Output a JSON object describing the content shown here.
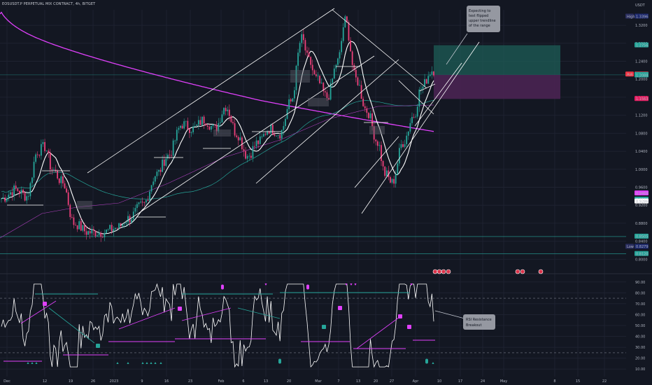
{
  "header": {
    "title": "EOSUSDT.P PERPETUAL MIX CONTRACT, 4h, BITGET"
  },
  "colors": {
    "background": "#131722",
    "up_candle": "#26a69a",
    "down_candle": "#ec407a",
    "ma_white": "#ffffff",
    "ma_magenta": "#e040fb",
    "ma_teal": "#26a69a",
    "channel_line": "#ffffff",
    "long_target_zone": "#1d5e57",
    "long_stop_zone": "#4a2352"
  },
  "chart_data": [
    {
      "type": "candlestick",
      "title": "EOSUSDT.P PERPETUAL MIX CONTRACT, 4h, BITGET",
      "currency_label": "USDT",
      "x_ticks": [
        "Dec",
        "12",
        "19",
        "26",
        "2023",
        "9",
        "16",
        "23",
        "Feb",
        "6",
        "13",
        "20",
        "Mar",
        "7",
        "13",
        "20",
        "27",
        "Apr",
        "10",
        "17",
        "24",
        "May",
        "8",
        "15",
        "22"
      ],
      "y_ticks": [
        0.8,
        0.84,
        0.88,
        0.92,
        0.96,
        1.0,
        1.04,
        1.08,
        1.12,
        1.16,
        1.2,
        1.24,
        1.28,
        1.32
      ],
      "ylim": [
        0.785,
        1.345
      ],
      "price_line_labels": [
        {
          "name": "High",
          "value": "1.3396"
        },
        {
          "name": "",
          "value": "1.2756"
        },
        {
          "name": "Ask",
          "value": "1.2108"
        },
        {
          "name": "",
          "value": "1.2098"
        },
        {
          "name": "",
          "value": "1.2088"
        },
        {
          "name": "",
          "value": "1.1563"
        },
        {
          "name": "",
          "value": "0.9466"
        },
        {
          "name": "",
          "value": "0.9328"
        },
        {
          "name": "",
          "value": "0.9286"
        },
        {
          "name": "",
          "value": "0.8505"
        },
        {
          "name": "Low",
          "value": "0.8279"
        },
        {
          "name": "",
          "value": "0.8120"
        }
      ],
      "position_box": {
        "entry": 1.2098,
        "target": 1.2756,
        "stop": 1.1563
      },
      "annotations": [
        "Expecting to test flipped upper trendline of the range"
      ]
    },
    {
      "type": "line",
      "title": "",
      "y_ticks": [
        10.0,
        20.0,
        30.0,
        40.0,
        50.0,
        60.0,
        70.0,
        80.0,
        90.0
      ],
      "ylim": [
        5,
        95
      ],
      "guide_levels": [
        75,
        25
      ],
      "annotations": [
        "RSI Resistance Breakout"
      ]
    }
  ]
}
